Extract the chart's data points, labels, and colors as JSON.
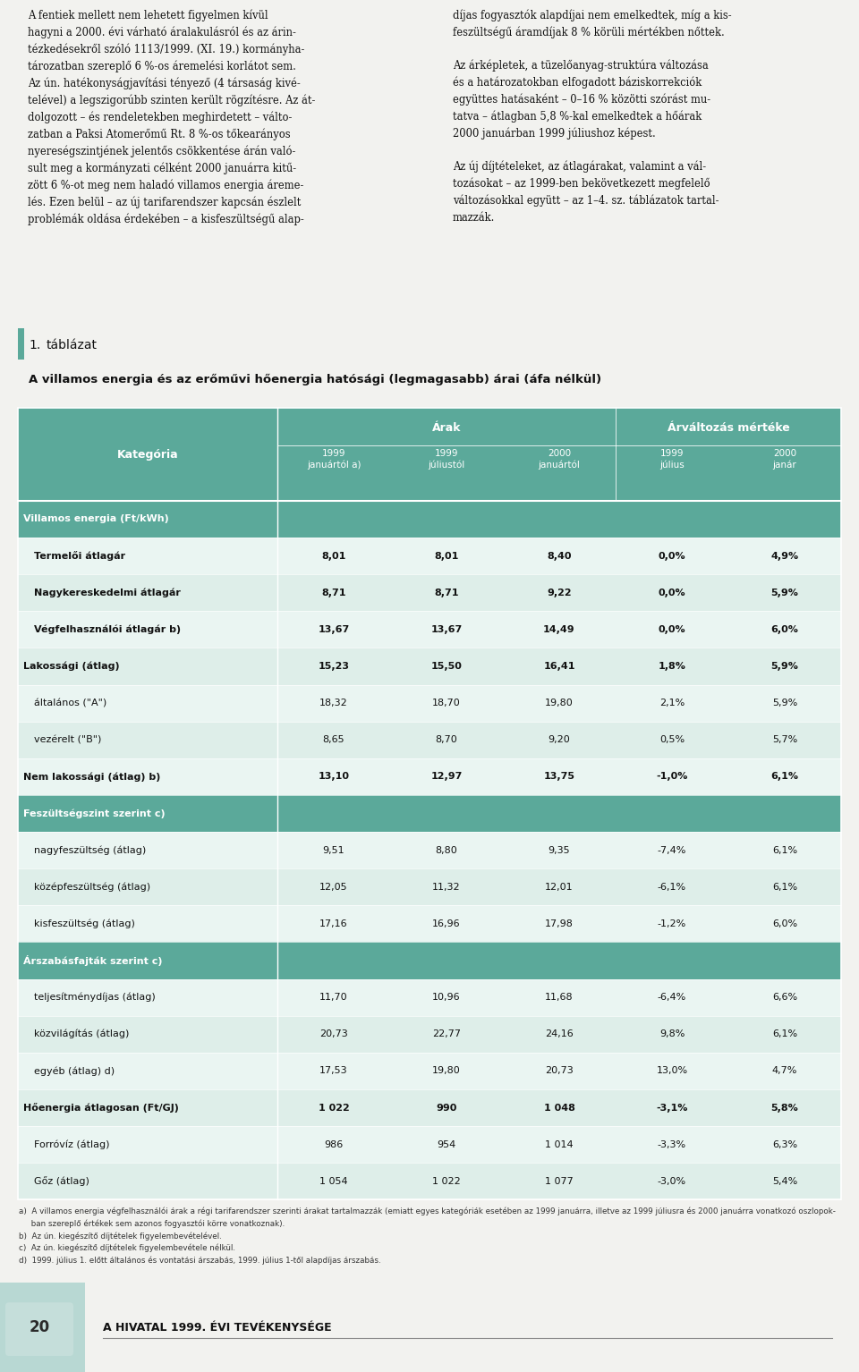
{
  "page_bg": "#f2f2ef",
  "top_text_left": "A fentiek mellett nem lehetett figyelmen kívül\nhagyni a 2000. évi várható áralakulásról és az árin-\ntézkedésekről szóló 1113/1999. (XI. 19.) kormányha-\ntározatban szereplő 6 %-os áremelési korlátot sem.\nAz ún. hatékonyságjavítási tényező (4 társaság kivé-\ntelével) a legszigorúbb szinten került rögzítésre. Az át-\ndolgozott – és rendeletekben meghirdetett – válto-\nzatban a Paksi Atomerőmű Rt. 8 %-os tőkearányos\nnyereségszintjének jelentős csökkentése árán való-\nsult meg a kormányzati célként 2000 januárra kitű-\nzött 6 %-ot meg nem haladó villamos energia áreme-\nlés. Ezen belül – az új tarifarendszer kapcsán észlelt\nproblémák oldása érdekében – a kisfeszültségű alap-",
  "top_text_right": "díjas fogyasztók alapdíjai nem emelkedtek, míg a kis-\nfeszültségű áramdíjak 8 % körüli mértékben nőttek.\n\nAz árképletek, a tüzelőanyag-struktúra változása\nés a határozatokban elfogadott báziskorrekciók\negyüttes hatásaként – 0–16 % közötti szórást mu-\ntatva – átlagban 5,8 %-kal emelkedtek a hőárak\n2000 januárban 1999 júliushoz képest.\n\nAz új díjtételeket, az átlagárakat, valamint a vál-\ntozásokat – az 1999-ben bekövetkezett megfelelő\nváltozásokkal együtt – az 1–4. sz. táblázatok tartal-\nmazzák.",
  "table_number": "1.",
  "table_label": "táblázat",
  "table_title": "A villamos energia és az erőművi hőenergia hatósági (legmagasabb) árai (áfa nélkül)",
  "header_bg": "#5ba99a",
  "row_bg_even": "#deeee9",
  "row_bg_odd": "#eaf5f2",
  "header_section_bg": "#5ba99a",
  "accent_color": "#5ba99a",
  "col_headers": [
    "1999\njanuártól a)",
    "1999\njúliustól",
    "2000\njanuártól",
    "1999\njúlius",
    "2000\njanár"
  ],
  "rows": [
    {
      "label": "Villamos energia (Ft/kWh)",
      "bold": true,
      "section_header": true,
      "vals": [
        "",
        "",
        "",
        "",
        ""
      ]
    },
    {
      "label": "Termelői átlagár",
      "bold": true,
      "section_header": false,
      "indent": true,
      "vals": [
        "8,01",
        "8,01",
        "8,40",
        "0,0%",
        "4,9%"
      ]
    },
    {
      "label": "Nagykereskedelmi átlagár",
      "bold": true,
      "section_header": false,
      "indent": true,
      "vals": [
        "8,71",
        "8,71",
        "9,22",
        "0,0%",
        "5,9%"
      ]
    },
    {
      "label": "Végfelhasználói átlagár b)",
      "bold": true,
      "section_header": false,
      "indent": true,
      "vals": [
        "13,67",
        "13,67",
        "14,49",
        "0,0%",
        "6,0%"
      ]
    },
    {
      "label": "Lakossági (átlag)",
      "bold": true,
      "section_header": false,
      "indent": false,
      "vals": [
        "15,23",
        "15,50",
        "16,41",
        "1,8%",
        "5,9%"
      ]
    },
    {
      "label": "általános (\"A\")",
      "bold": false,
      "section_header": false,
      "indent": true,
      "vals": [
        "18,32",
        "18,70",
        "19,80",
        "2,1%",
        "5,9%"
      ]
    },
    {
      "label": "vezérelt (\"B\")",
      "bold": false,
      "section_header": false,
      "indent": true,
      "vals": [
        "8,65",
        "8,70",
        "9,20",
        "0,5%",
        "5,7%"
      ]
    },
    {
      "label": "Nem lakossági (átlag) b)",
      "bold": true,
      "section_header": false,
      "indent": false,
      "vals": [
        "13,10",
        "12,97",
        "13,75",
        "-1,0%",
        "6,1%"
      ]
    },
    {
      "label": "Feszültségszint szerint c)",
      "bold": true,
      "section_header": true,
      "vals": [
        "",
        "",
        "",
        "",
        ""
      ]
    },
    {
      "label": "nagyfeszültség (átlag)",
      "bold": false,
      "section_header": false,
      "indent": true,
      "vals": [
        "9,51",
        "8,80",
        "9,35",
        "-7,4%",
        "6,1%"
      ]
    },
    {
      "label": "középfeszültség (átlag)",
      "bold": false,
      "section_header": false,
      "indent": true,
      "vals": [
        "12,05",
        "11,32",
        "12,01",
        "-6,1%",
        "6,1%"
      ]
    },
    {
      "label": "kisfeszültség (átlag)",
      "bold": false,
      "section_header": false,
      "indent": true,
      "vals": [
        "17,16",
        "16,96",
        "17,98",
        "-1,2%",
        "6,0%"
      ]
    },
    {
      "label": "Árszabásfajták szerint c)",
      "bold": true,
      "section_header": true,
      "vals": [
        "",
        "",
        "",
        "",
        ""
      ]
    },
    {
      "label": "teljesítménydíjas (átlag)",
      "bold": false,
      "section_header": false,
      "indent": true,
      "vals": [
        "11,70",
        "10,96",
        "11,68",
        "-6,4%",
        "6,6%"
      ]
    },
    {
      "label": "közvilágítás (átlag)",
      "bold": false,
      "section_header": false,
      "indent": true,
      "vals": [
        "20,73",
        "22,77",
        "24,16",
        "9,8%",
        "6,1%"
      ]
    },
    {
      "label": "egyéb (átlag) d)",
      "bold": false,
      "section_header": false,
      "indent": true,
      "vals": [
        "17,53",
        "19,80",
        "20,73",
        "13,0%",
        "4,7%"
      ]
    },
    {
      "label": "Hőenergia átlagosan (Ft/GJ)",
      "bold": true,
      "section_header": false,
      "indent": false,
      "vals": [
        "1 022",
        "990",
        "1 048",
        "-3,1%",
        "5,8%"
      ]
    },
    {
      "label": "Forróvíz (átlag)",
      "bold": false,
      "section_header": false,
      "indent": true,
      "vals": [
        "986",
        "954",
        "1 014",
        "-3,3%",
        "6,3%"
      ]
    },
    {
      "label": "Gőz (átlag)",
      "bold": false,
      "section_header": false,
      "indent": true,
      "vals": [
        "1 054",
        "1 022",
        "1 077",
        "-3,0%",
        "5,4%"
      ]
    }
  ],
  "footnote_a": "a)  A villamos energia végfelhasználói árak a régi tarifarendszer szerinti árakat tartalmazzák (emiatt egyes kategóriák esetében az 1999 januárra, illetve az 1999 júliusra és 2000 januárra vonatkozó oszlopok-",
  "footnote_a2": "     ban szereplő értékek sem azonos fogyasztói körre vonatkoznak).",
  "footnote_b": "b)  Az ún. kiegészítő díjtételek figyelembevételével.",
  "footnote_c": "c)  Az ún. kiegészítő díjtételek figyelembevétele nélkül.",
  "footnote_d": "d)  1999. július 1. előtt általános és vontatási árszabás, 1999. július 1-től alapdíjas árszabás.",
  "footer_number": "20",
  "footer_text": "A HIVATAL 1999. ÉVI TEVÉKENYSÉGE"
}
